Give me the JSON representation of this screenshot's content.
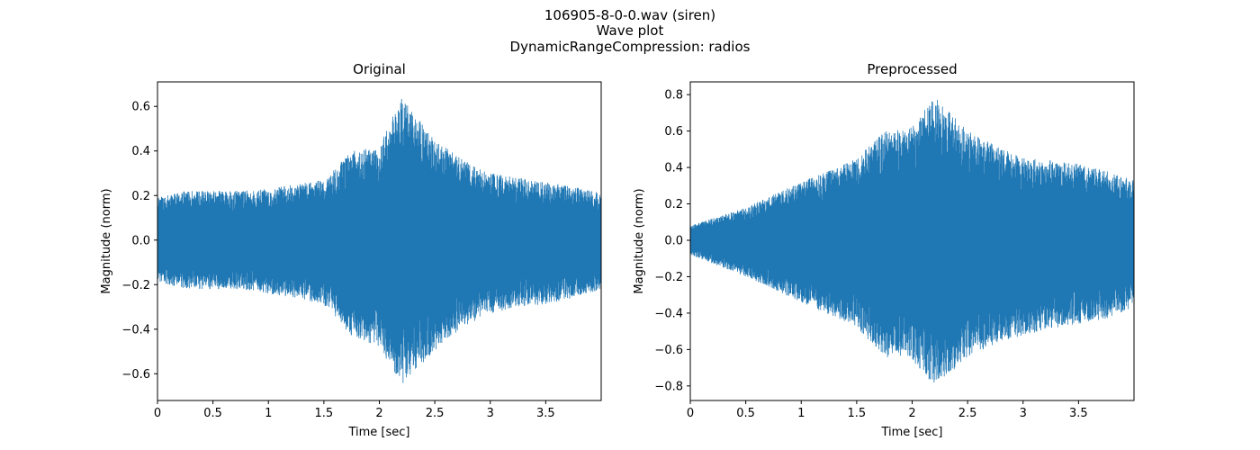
{
  "figure": {
    "suptitle_lines": [
      "106905-8-0-0.wav (siren)",
      "Wave plot",
      "DynamicRangeCompression: radios"
    ],
    "wave_color": "#1f77b4"
  },
  "chart_data": [
    {
      "type": "area",
      "title": "Original",
      "xlabel": "Time [sec]",
      "ylabel": "Magnitude (norm)",
      "xlim": [
        0,
        4.0
      ],
      "ylim": [
        -0.72,
        0.71
      ],
      "xticks": [
        0,
        0.5,
        1,
        1.5,
        2,
        2.5,
        3,
        3.5
      ],
      "xtick_labels": [
        "0",
        "0.5",
        "1",
        "1.5",
        "2",
        "2.5",
        "3",
        "3.5"
      ],
      "yticks": [
        -0.6,
        -0.4,
        -0.2,
        0.0,
        0.2,
        0.4,
        0.6
      ],
      "ytick_labels": [
        "−0.6",
        "−0.4",
        "−0.2",
        "0.0",
        "0.2",
        "0.4",
        "0.6"
      ],
      "grid": false,
      "series": [
        {
          "x": [
            0,
            0.25,
            0.5,
            0.75,
            1.0,
            1.25,
            1.5,
            1.75,
            2.0,
            2.2,
            2.5,
            2.75,
            3.0,
            3.25,
            3.5,
            3.75,
            4.0
          ],
          "upper": [
            0.19,
            0.22,
            0.22,
            0.22,
            0.23,
            0.25,
            0.27,
            0.4,
            0.42,
            0.64,
            0.45,
            0.36,
            0.3,
            0.28,
            0.26,
            0.24,
            0.21
          ],
          "lower": [
            -0.19,
            -0.22,
            -0.22,
            -0.22,
            -0.24,
            -0.26,
            -0.29,
            -0.43,
            -0.48,
            -0.65,
            -0.5,
            -0.39,
            -0.33,
            -0.3,
            -0.29,
            -0.26,
            -0.22
          ]
        }
      ]
    },
    {
      "type": "area",
      "title": "Preprocessed",
      "xlabel": "Time [sec]",
      "ylabel": "Magnitude (norm)",
      "xlim": [
        0,
        4.0
      ],
      "ylim": [
        -0.88,
        0.87
      ],
      "xticks": [
        0,
        0.5,
        1,
        1.5,
        2,
        2.5,
        3,
        3.5
      ],
      "xtick_labels": [
        "0",
        "0.5",
        "1",
        "1.5",
        "2",
        "2.5",
        "3",
        "3.5"
      ],
      "yticks": [
        -0.8,
        -0.6,
        -0.4,
        -0.2,
        0.0,
        0.2,
        0.4,
        0.6,
        0.8
      ],
      "ytick_labels": [
        "−0.8",
        "−0.6",
        "−0.4",
        "−0.2",
        "0.0",
        "0.2",
        "0.4",
        "0.6",
        "0.8"
      ],
      "grid": false,
      "series": [
        {
          "x": [
            0,
            0.25,
            0.5,
            0.75,
            1.0,
            1.25,
            1.5,
            1.75,
            2.0,
            2.2,
            2.5,
            2.75,
            3.0,
            3.25,
            3.5,
            3.75,
            4.0
          ],
          "upper": [
            0.08,
            0.13,
            0.18,
            0.25,
            0.32,
            0.38,
            0.45,
            0.6,
            0.62,
            0.79,
            0.6,
            0.52,
            0.45,
            0.44,
            0.42,
            0.38,
            0.33
          ],
          "lower": [
            -0.08,
            -0.14,
            -0.2,
            -0.27,
            -0.34,
            -0.41,
            -0.48,
            -0.64,
            -0.66,
            -0.8,
            -0.65,
            -0.57,
            -0.52,
            -0.49,
            -0.46,
            -0.43,
            -0.37
          ]
        }
      ]
    }
  ]
}
